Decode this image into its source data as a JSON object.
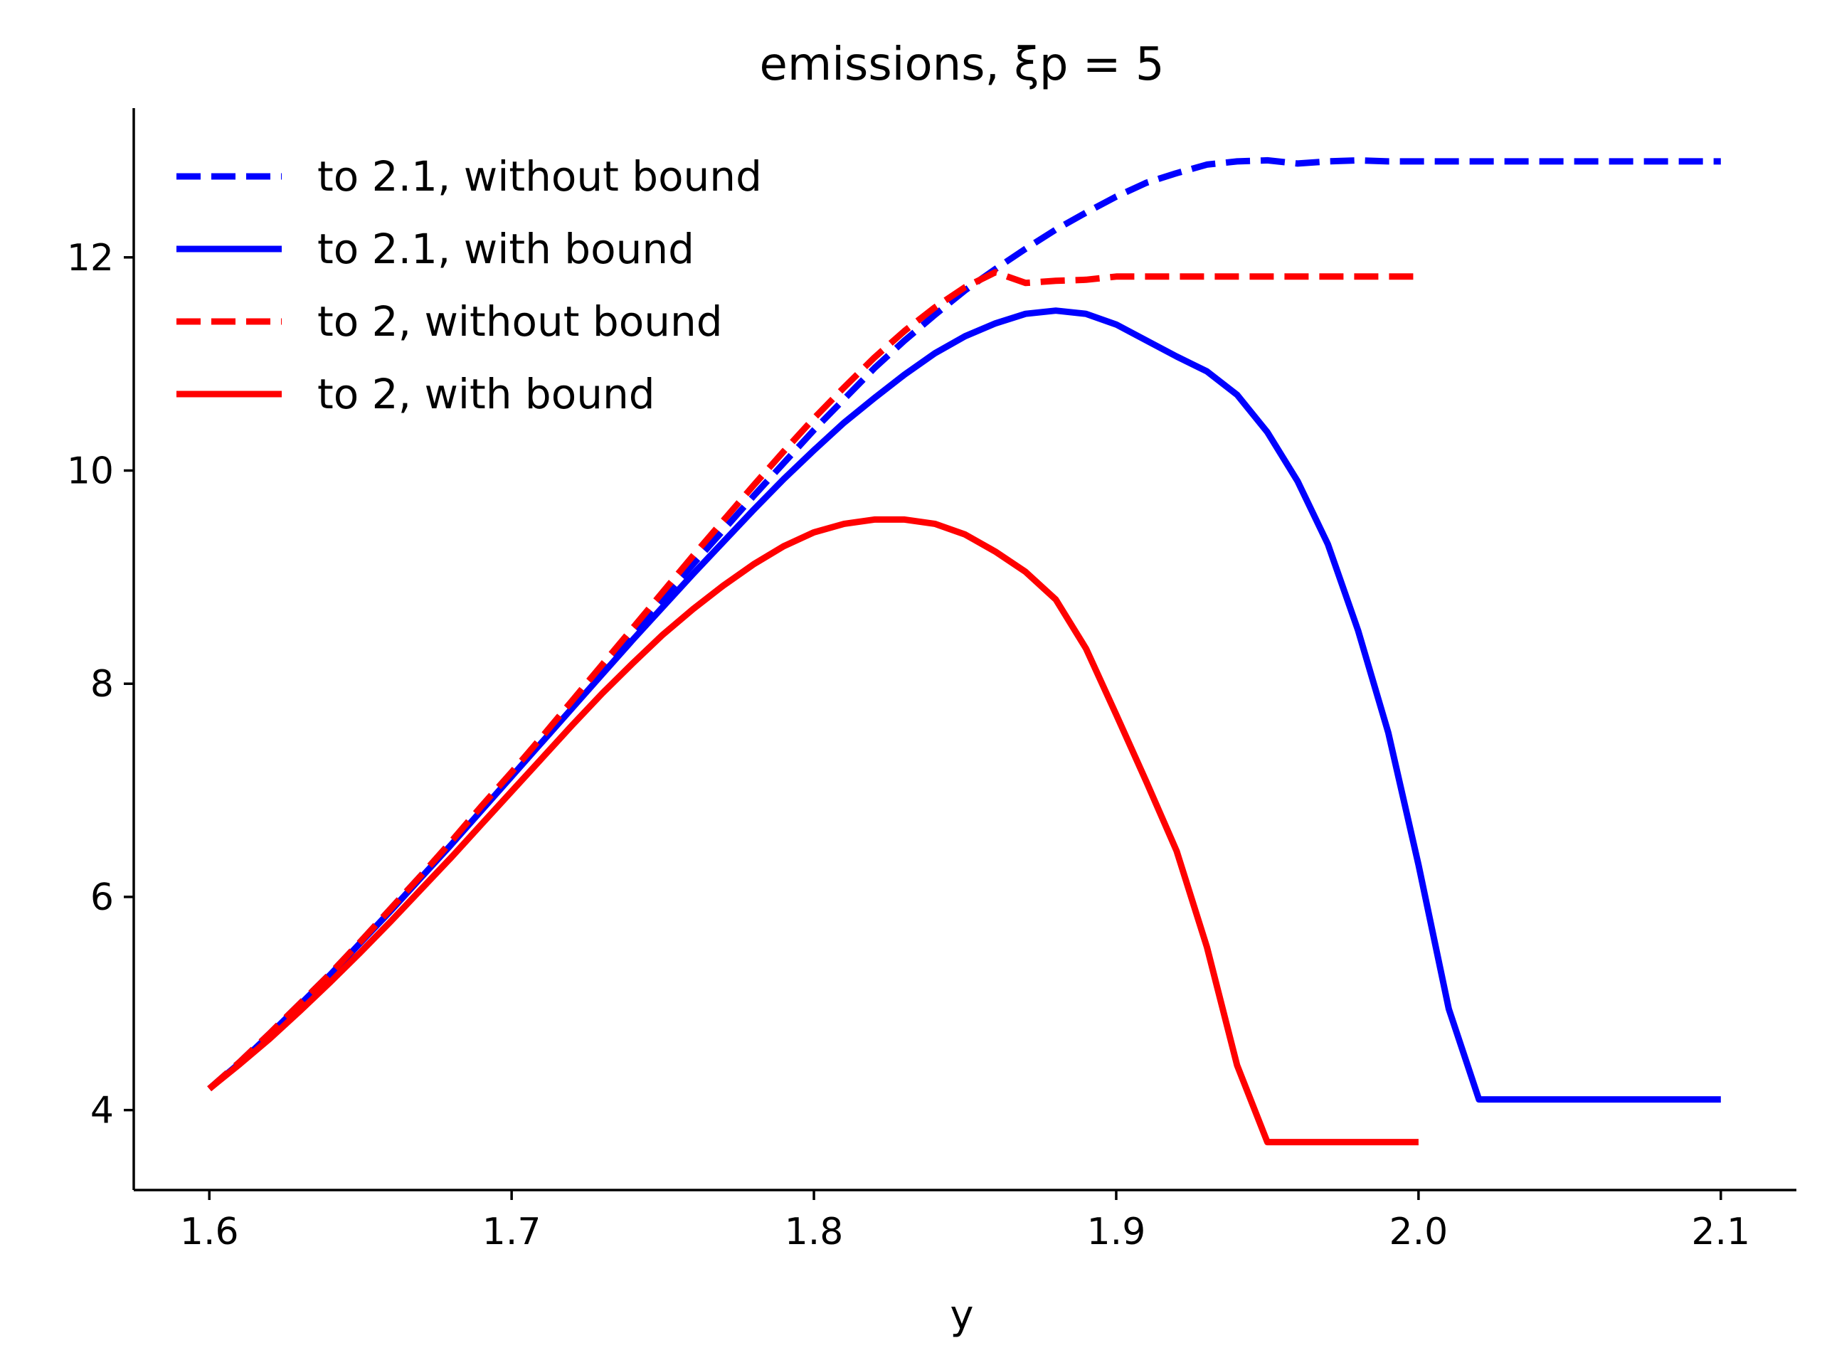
{
  "chart_data": {
    "type": "line",
    "title": "emissions, ξp = 5",
    "xlabel": "y",
    "ylabel": "",
    "xlim": [
      1.575,
      2.125
    ],
    "ylim": [
      3.25,
      13.4
    ],
    "xticks": [
      1.6,
      1.7,
      1.8,
      1.9,
      2.0,
      2.1
    ],
    "xtick_labels": [
      "1.6",
      "1.7",
      "1.8",
      "1.9",
      "2.0",
      "2.1"
    ],
    "yticks": [
      4,
      6,
      8,
      10,
      12
    ],
    "ytick_labels": [
      "4",
      "6",
      "8",
      "10",
      "12"
    ],
    "grid": false,
    "legend_position": "top-left",
    "series": [
      {
        "name": "to 2.1, without bound",
        "color": "#0000ff",
        "style": "dashed",
        "x": [
          1.6,
          1.61,
          1.62,
          1.63,
          1.64,
          1.65,
          1.66,
          1.67,
          1.68,
          1.69,
          1.7,
          1.71,
          1.72,
          1.73,
          1.74,
          1.75,
          1.76,
          1.77,
          1.78,
          1.79,
          1.8,
          1.81,
          1.82,
          1.83,
          1.84,
          1.85,
          1.86,
          1.87,
          1.88,
          1.89,
          1.9,
          1.91,
          1.92,
          1.93,
          1.94,
          1.95,
          1.96,
          1.97,
          1.98,
          1.99,
          2.0,
          2.01,
          2.02,
          2.03,
          2.04,
          2.05,
          2.06,
          2.07,
          2.08,
          2.09,
          2.1
        ],
        "y": [
          4.2,
          4.45,
          4.72,
          5.0,
          5.28,
          5.58,
          5.89,
          6.2,
          6.51,
          6.83,
          7.15,
          7.48,
          7.81,
          8.14,
          8.47,
          8.8,
          9.12,
          9.44,
          9.76,
          10.07,
          10.38,
          10.67,
          10.96,
          11.22,
          11.46,
          11.69,
          11.89,
          12.08,
          12.26,
          12.42,
          12.57,
          12.7,
          12.79,
          12.87,
          12.9,
          12.91,
          12.88,
          12.9,
          12.91,
          12.9,
          12.9,
          12.9,
          12.9,
          12.9,
          12.9,
          12.9,
          12.9,
          12.9,
          12.9,
          12.9,
          12.9
        ]
      },
      {
        "name": "to 2.1, with bound",
        "color": "#0000ff",
        "style": "solid",
        "x": [
          1.6,
          1.61,
          1.62,
          1.63,
          1.64,
          1.65,
          1.66,
          1.67,
          1.68,
          1.69,
          1.7,
          1.71,
          1.72,
          1.73,
          1.74,
          1.75,
          1.76,
          1.77,
          1.78,
          1.79,
          1.8,
          1.81,
          1.82,
          1.83,
          1.84,
          1.85,
          1.86,
          1.87,
          1.88,
          1.89,
          1.9,
          1.91,
          1.92,
          1.93,
          1.94,
          1.95,
          1.96,
          1.97,
          1.98,
          1.99,
          2.0,
          2.01,
          2.02,
          2.03,
          2.04,
          2.05,
          2.06,
          2.07,
          2.08,
          2.09,
          2.1
        ],
        "y": [
          4.2,
          4.44,
          4.71,
          4.99,
          5.27,
          5.57,
          5.87,
          6.18,
          6.49,
          6.81,
          7.13,
          7.45,
          7.77,
          8.09,
          8.41,
          8.72,
          9.03,
          9.33,
          9.63,
          9.92,
          10.19,
          10.45,
          10.68,
          10.9,
          11.1,
          11.26,
          11.38,
          11.47,
          11.5,
          11.47,
          11.37,
          11.22,
          11.07,
          10.93,
          10.71,
          10.36,
          9.9,
          9.31,
          8.5,
          7.54,
          6.3,
          4.95,
          4.1,
          4.1,
          4.1,
          4.1,
          4.1,
          4.1,
          4.1,
          4.1,
          4.1
        ]
      },
      {
        "name": "to 2, without bound",
        "color": "#ff0000",
        "style": "dashed",
        "x": [
          1.6,
          1.61,
          1.62,
          1.63,
          1.64,
          1.65,
          1.66,
          1.67,
          1.68,
          1.69,
          1.7,
          1.71,
          1.72,
          1.73,
          1.74,
          1.75,
          1.76,
          1.77,
          1.78,
          1.79,
          1.8,
          1.81,
          1.82,
          1.83,
          1.84,
          1.85,
          1.86,
          1.87,
          1.88,
          1.89,
          1.9,
          1.91,
          1.92,
          1.93,
          1.94,
          1.95,
          1.96,
          1.97,
          1.98,
          1.99,
          2.0
        ],
        "y": [
          4.2,
          4.45,
          4.72,
          5.0,
          5.28,
          5.58,
          5.89,
          6.2,
          6.52,
          6.85,
          7.17,
          7.5,
          7.84,
          8.18,
          8.52,
          8.86,
          9.2,
          9.53,
          9.86,
          10.18,
          10.49,
          10.78,
          11.06,
          11.31,
          11.53,
          11.72,
          11.86,
          11.76,
          11.78,
          11.79,
          11.82,
          11.82,
          11.82,
          11.82,
          11.82,
          11.82,
          11.82,
          11.82,
          11.82,
          11.82,
          11.82
        ]
      },
      {
        "name": "to 2, with bound",
        "color": "#ff0000",
        "style": "solid",
        "x": [
          1.6,
          1.61,
          1.62,
          1.63,
          1.64,
          1.65,
          1.66,
          1.67,
          1.68,
          1.69,
          1.7,
          1.71,
          1.72,
          1.73,
          1.74,
          1.75,
          1.76,
          1.77,
          1.78,
          1.79,
          1.8,
          1.81,
          1.82,
          1.83,
          1.84,
          1.85,
          1.86,
          1.87,
          1.88,
          1.89,
          1.9,
          1.91,
          1.92,
          1.93,
          1.94,
          1.95,
          1.96,
          1.97,
          1.98,
          1.99,
          2.0
        ],
        "y": [
          4.2,
          4.43,
          4.67,
          4.93,
          5.2,
          5.48,
          5.77,
          6.07,
          6.37,
          6.68,
          6.99,
          7.3,
          7.61,
          7.91,
          8.19,
          8.46,
          8.7,
          8.92,
          9.12,
          9.29,
          9.42,
          9.5,
          9.54,
          9.54,
          9.5,
          9.4,
          9.24,
          9.05,
          8.79,
          8.33,
          7.71,
          7.08,
          6.43,
          5.53,
          4.42,
          3.7,
          3.7,
          3.7,
          3.7,
          3.7,
          3.7
        ]
      }
    ]
  }
}
